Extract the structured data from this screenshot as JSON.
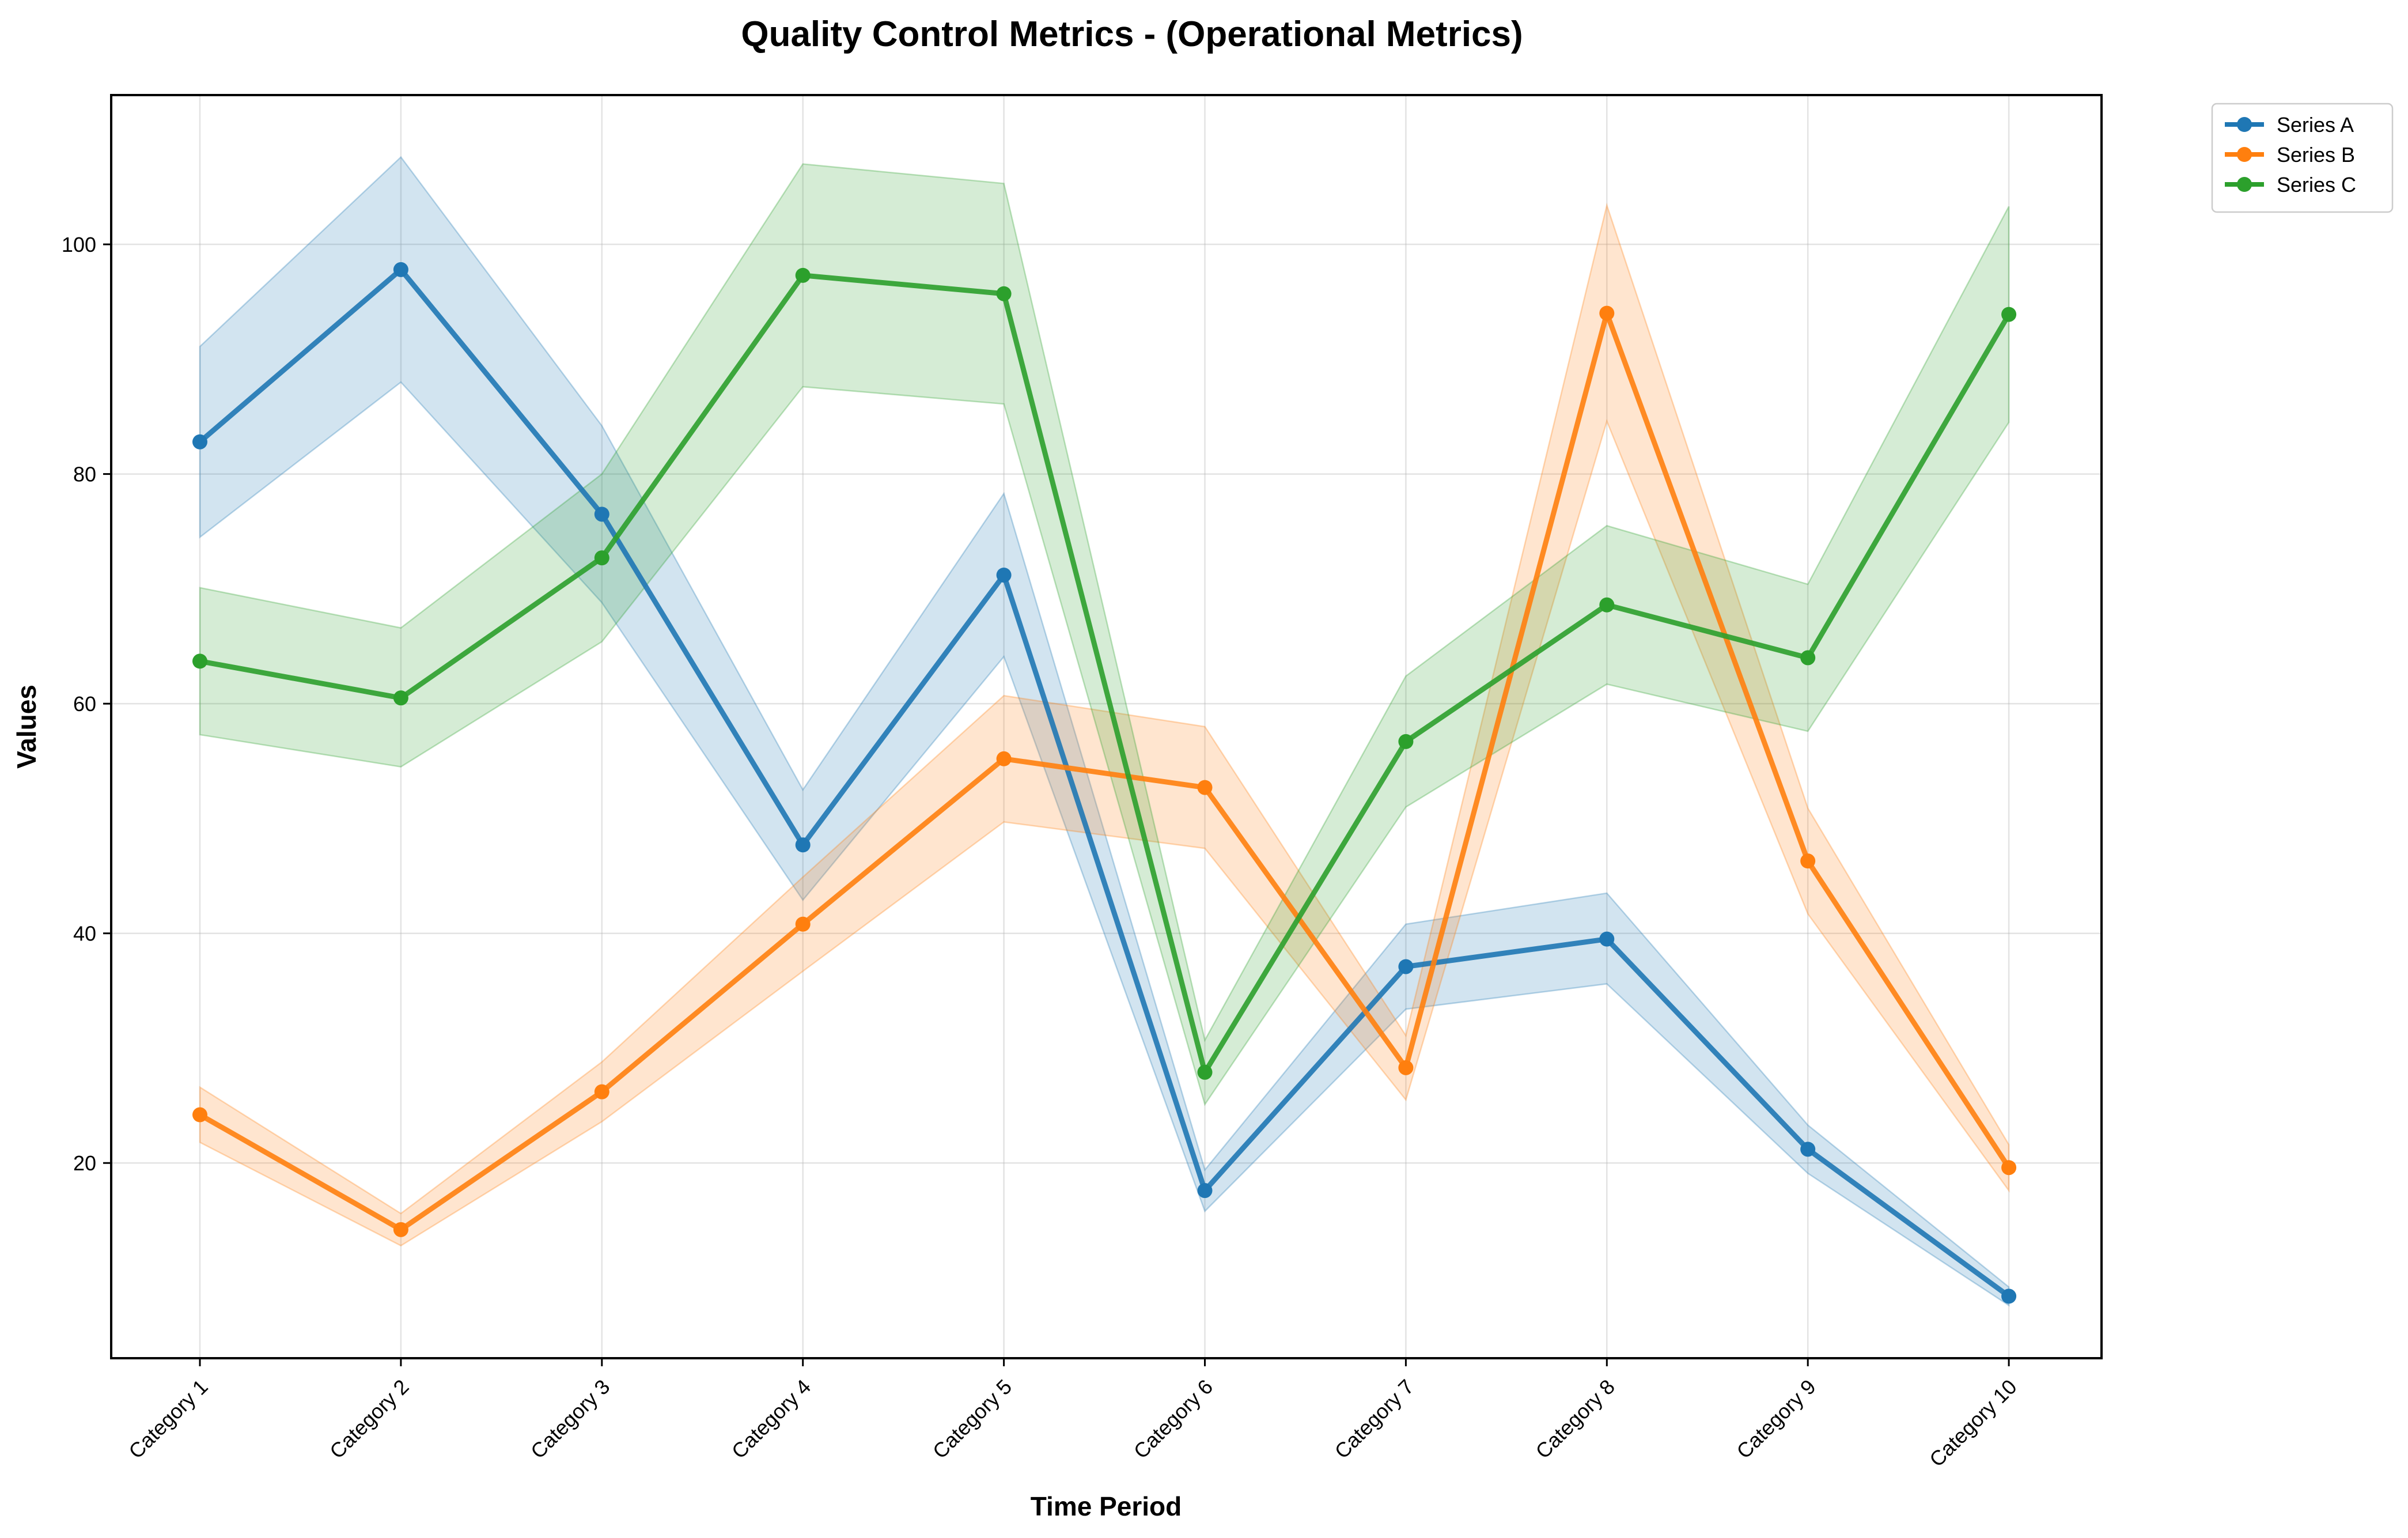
{
  "chart_data": {
    "type": "line",
    "title": "Quality Control Metrics - (Operational Metrics)",
    "xlabel": "Time Period",
    "ylabel": "Values",
    "categories": [
      "Category 1",
      "Category 2",
      "Category 3",
      "Category 4",
      "Category 5",
      "Category 6",
      "Category 7",
      "Category 8",
      "Category 9",
      "Category 10"
    ],
    "ylim": [
      3,
      113
    ],
    "yticks": [
      20,
      40,
      60,
      80,
      100
    ],
    "grid": true,
    "legend_position": "outside-top-right",
    "series": [
      {
        "name": "Series A",
        "color": "#1f77b4",
        "values": [
          82.8,
          97.8,
          76.5,
          47.7,
          71.2,
          17.6,
          37.1,
          39.5,
          21.2,
          8.4
        ],
        "lower": [
          74.5,
          88.0,
          68.8,
          42.9,
          64.1,
          15.8,
          33.4,
          35.6,
          19.1,
          7.6
        ],
        "upper": [
          91.1,
          107.6,
          84.2,
          52.5,
          78.3,
          19.4,
          40.8,
          43.5,
          23.3,
          9.2
        ]
      },
      {
        "name": "Series B",
        "color": "#ff7f0e",
        "values": [
          24.2,
          14.2,
          26.2,
          40.8,
          55.2,
          52.7,
          28.3,
          94.0,
          46.3,
          19.6
        ],
        "lower": [
          21.8,
          12.8,
          23.6,
          36.7,
          49.7,
          47.4,
          25.5,
          84.6,
          41.7,
          17.6
        ],
        "upper": [
          26.6,
          15.6,
          28.8,
          44.9,
          60.7,
          58.0,
          31.1,
          103.4,
          50.9,
          21.6
        ]
      },
      {
        "name": "Series C",
        "color": "#2ca02c",
        "values": [
          63.7,
          60.5,
          72.7,
          97.3,
          95.7,
          27.9,
          56.7,
          68.6,
          64.0,
          93.9
        ],
        "lower": [
          57.3,
          54.5,
          65.4,
          87.6,
          86.1,
          25.1,
          51.0,
          61.7,
          57.6,
          84.5
        ],
        "upper": [
          70.1,
          66.6,
          80.0,
          107.0,
          105.3,
          30.7,
          62.4,
          75.5,
          70.4,
          103.3
        ]
      }
    ]
  }
}
